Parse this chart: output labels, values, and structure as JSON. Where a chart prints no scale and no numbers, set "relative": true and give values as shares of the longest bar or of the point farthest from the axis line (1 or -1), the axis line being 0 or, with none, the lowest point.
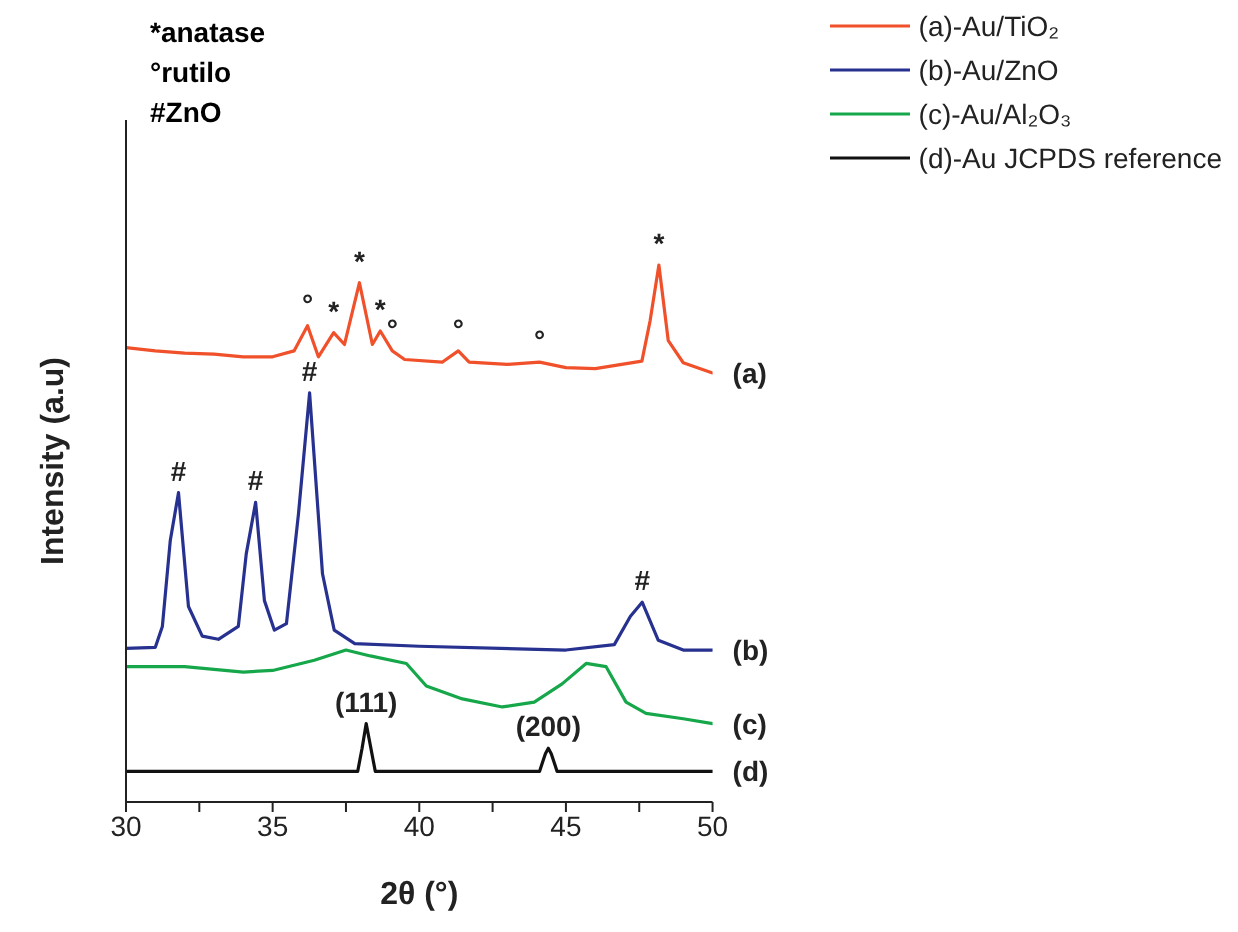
{
  "chart_data": {
    "type": "line",
    "relative": true,
    "xlabel": "2θ (°)",
    "ylabel": "Intensity (a.u)",
    "xlim": [
      30,
      50
    ],
    "xticks": [
      30,
      {
        "value": 32.5,
        "label": null
      },
      35,
      {
        "value": 37.5,
        "label": null
      },
      40,
      {
        "value": 42.5,
        "label": null
      },
      45,
      {
        "value": 47.5,
        "label": null
      },
      50
    ],
    "tick_labels": "x",
    "grid": false,
    "legend": "top right",
    "marker": "none",
    "line_style": "solid",
    "series": [
      {
        "name": "(a)-Au/TiO₂",
        "color": "#f0502a",
        "x": [
          30,
          31,
          32,
          33,
          34,
          35,
          35.73,
          36.19,
          36.56,
          37.08,
          37.45,
          37.96,
          38.4,
          38.67,
          39.08,
          39.5,
          40.78,
          41.33,
          41.7,
          43,
          44.1,
          45,
          46,
          47.59,
          47.87,
          48.17,
          48.49,
          49,
          50
        ],
        "values": [
          0.846,
          0.84,
          0.836,
          0.834,
          0.829,
          0.829,
          0.84,
          0.887,
          0.829,
          0.874,
          0.852,
          0.967,
          0.852,
          0.877,
          0.84,
          0.824,
          0.819,
          0.84,
          0.819,
          0.815,
          0.819,
          0.809,
          0.807,
          0.821,
          0.896,
          1,
          0.859,
          0.818,
          0.799
        ]
      },
      {
        "name": "(b)-Au/ZnO",
        "color": "#27318f",
        "x": [
          30,
          31,
          31.24,
          31.51,
          31.79,
          32.13,
          32.6,
          33.15,
          33.83,
          34.1,
          34.42,
          34.72,
          35.06,
          35.47,
          35.88,
          36.26,
          36.7,
          37.1,
          37.8,
          40,
          45,
          46.65,
          47.2,
          47.6,
          48.15,
          49,
          50
        ],
        "values": [
          0.286,
          0.288,
          0.327,
          0.487,
          0.576,
          0.364,
          0.309,
          0.303,
          0.327,
          0.462,
          0.558,
          0.375,
          0.32,
          0.332,
          0.536,
          0.762,
          0.425,
          0.32,
          0.295,
          0.29,
          0.283,
          0.293,
          0.346,
          0.372,
          0.301,
          0.283,
          0.283
        ]
      },
      {
        "name": "(c)-Au/Al₂O₃",
        "color": "#16a74a",
        "x": [
          30,
          32,
          34,
          35,
          36.42,
          37.5,
          38.33,
          39.56,
          40.24,
          41.47,
          42.83,
          43.92,
          44.87,
          45.69,
          46.37,
          47.05,
          47.73,
          49,
          50
        ],
        "values": [
          0.252,
          0.252,
          0.242,
          0.245,
          0.264,
          0.283,
          0.272,
          0.258,
          0.216,
          0.192,
          0.177,
          0.186,
          0.22,
          0.258,
          0.252,
          0.186,
          0.165,
          0.155,
          0.146
        ]
      },
      {
        "name": "(d)-Au JCPDS reference",
        "color": "#111111",
        "x": [
          30,
          37.9,
          38.05,
          38.19,
          38.35,
          38.5,
          44.1,
          44.3,
          44.4,
          44.5,
          44.7,
          50
        ],
        "values": [
          0.057,
          0.057,
          0.1,
          0.146,
          0.1,
          0.057,
          0.057,
          0.09,
          0.1,
          0.09,
          0.057,
          0.057
        ]
      }
    ],
    "annotations": [
      "*anatase",
      "°rutilo",
      "#ZnO",
      {
        "text": "°",
        "x": 36.19,
        "y": 0.887
      },
      {
        "text": "*",
        "x": 37.08,
        "y": 0.874
      },
      {
        "text": "*",
        "x": 37.96,
        "y": 0.967
      },
      {
        "text": "*",
        "x": 38.67,
        "y": 0.877
      },
      {
        "text": "°",
        "x": 39.08,
        "y": 0.84
      },
      {
        "text": "°",
        "x": 41.33,
        "y": 0.84
      },
      {
        "text": "°",
        "x": 44.1,
        "y": 0.819
      },
      {
        "text": "*",
        "x": 48.17,
        "y": 1
      },
      {
        "text": "#",
        "x": 31.79,
        "y": 0.576
      },
      {
        "text": "#",
        "x": 34.42,
        "y": 0.558
      },
      {
        "text": "#",
        "x": 36.26,
        "y": 0.762
      },
      {
        "text": "#",
        "x": 47.6,
        "y": 0.372
      },
      {
        "text": "(111)",
        "x": 38.19,
        "y": 0.146
      },
      {
        "text": "(200)",
        "x": 44.4,
        "y": 0.1
      },
      {
        "text": "(a)",
        "x": 50,
        "y": 0.799
      },
      {
        "text": "(b)",
        "x": 50,
        "y": 0.283
      },
      {
        "text": "(c)",
        "x": 50,
        "y": 0.146
      },
      {
        "text": "(d)",
        "x": 50,
        "y": 0.057
      }
    ]
  }
}
